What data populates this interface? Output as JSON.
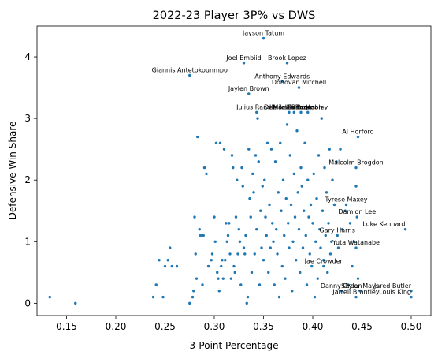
{
  "chart_data": {
    "type": "scatter",
    "title": "2022-23 Player 3P% vs DWS",
    "xlabel": "3-Point Percentage",
    "ylabel": "Defensive Win Share",
    "xlim": [
      0.12,
      0.52
    ],
    "ylim": [
      -0.2,
      4.5
    ],
    "xticks": [
      "0.15",
      "0.20",
      "0.25",
      "0.30",
      "0.35",
      "0.40",
      "0.45",
      "0.50"
    ],
    "yticks": [
      "0",
      "1",
      "2",
      "3",
      "4"
    ],
    "point_color": "#1f77b4",
    "grid": false,
    "labeled_points": [
      {
        "name": "Jayson Tatum",
        "x": 0.35,
        "y": 4.3
      },
      {
        "name": "Joel Embiid",
        "x": 0.33,
        "y": 3.9
      },
      {
        "name": "Brook Lopez",
        "x": 0.374,
        "y": 3.9
      },
      {
        "name": "Giannis Antetokounmpo",
        "x": 0.275,
        "y": 3.7
      },
      {
        "name": "Anthony Edwards",
        "x": 0.369,
        "y": 3.6
      },
      {
        "name": "Donovan Mitchell",
        "x": 0.386,
        "y": 3.5
      },
      {
        "name": "Jaylen Brown",
        "x": 0.335,
        "y": 3.4
      },
      {
        "name": "Julius Randle",
        "x": 0.343,
        "y": 3.1
      },
      {
        "name": "DeMar DeRozan",
        "x": 0.376,
        "y": 3.1
      },
      {
        "name": "Jalen Brunson",
        "x": 0.388,
        "y": 3.1
      },
      {
        "name": "Mikal Bridges",
        "x": 0.381,
        "y": 3.1
      },
      {
        "name": "Evan Mobley",
        "x": 0.395,
        "y": 3.1
      },
      {
        "name": "Al Horford",
        "x": 0.446,
        "y": 2.7
      },
      {
        "name": "Malcolm Brogdon",
        "x": 0.444,
        "y": 2.2
      },
      {
        "name": "Tyrese Maxey",
        "x": 0.434,
        "y": 1.6
      },
      {
        "name": "Damion Lee",
        "x": 0.445,
        "y": 1.4
      },
      {
        "name": "Luke Kennard",
        "x": 0.494,
        "y": 1.2
      },
      {
        "name": "Gary Harris",
        "x": 0.425,
        "y": 1.1
      },
      {
        "name": "Yuta Watanabe",
        "x": 0.444,
        "y": 0.9
      },
      {
        "name": "Jae Crowder",
        "x": 0.411,
        "y": 0.6
      },
      {
        "name": "Danny Green",
        "x": 0.429,
        "y": 0.2
      },
      {
        "name": "Skylar Mays",
        "x": 0.448,
        "y": 0.2
      },
      {
        "name": "Jared Butler",
        "x": 0.5,
        "y": 0.2
      },
      {
        "name": "Jarrell Brantley",
        "x": 0.444,
        "y": 0.1
      },
      {
        "name": "Louis King",
        "x": 0.5,
        "y": 0.1
      }
    ],
    "points": [
      [
        0.133,
        0.1
      ],
      [
        0.159,
        0.0
      ],
      [
        0.238,
        0.1
      ],
      [
        0.241,
        0.3
      ],
      [
        0.244,
        0.7
      ],
      [
        0.248,
        0.1
      ],
      [
        0.25,
        0.6
      ],
      [
        0.253,
        0.7
      ],
      [
        0.255,
        0.9
      ],
      [
        0.257,
        0.6
      ],
      [
        0.262,
        0.6
      ],
      [
        0.275,
        0.0
      ],
      [
        0.278,
        0.1
      ],
      [
        0.279,
        0.2
      ],
      [
        0.28,
        1.4
      ],
      [
        0.281,
        0.8
      ],
      [
        0.282,
        0.4
      ],
      [
        0.283,
        2.7
      ],
      [
        0.285,
        1.2
      ],
      [
        0.286,
        1.1
      ],
      [
        0.288,
        0.3
      ],
      [
        0.289,
        1.1
      ],
      [
        0.29,
        2.2
      ],
      [
        0.292,
        2.1
      ],
      [
        0.294,
        0.6
      ],
      [
        0.297,
        0.7
      ],
      [
        0.298,
        0.8
      ],
      [
        0.3,
        1.4
      ],
      [
        0.301,
        1.0
      ],
      [
        0.302,
        2.6
      ],
      [
        0.303,
        0.5
      ],
      [
        0.304,
        0.4
      ],
      [
        0.305,
        0.2
      ],
      [
        0.306,
        2.6
      ],
      [
        0.307,
        0.6
      ],
      [
        0.308,
        0.7
      ],
      [
        0.309,
        0.4
      ],
      [
        0.31,
        2.5
      ],
      [
        0.311,
        0.7
      ],
      [
        0.312,
        1.3
      ],
      [
        0.313,
        1.0
      ],
      [
        0.314,
        1.1
      ],
      [
        0.315,
        1.3
      ],
      [
        0.316,
        0.8
      ],
      [
        0.317,
        0.4
      ],
      [
        0.318,
        2.4
      ],
      [
        0.319,
        2.2
      ],
      [
        0.32,
        0.6
      ],
      [
        0.321,
        0.5
      ],
      [
        0.322,
        1.4
      ],
      [
        0.323,
        2.0
      ],
      [
        0.324,
        0.8
      ],
      [
        0.325,
        1.2
      ],
      [
        0.326,
        1.0
      ],
      [
        0.327,
        0.3
      ],
      [
        0.328,
        2.2
      ],
      [
        0.329,
        1.9
      ],
      [
        0.33,
        0.9
      ],
      [
        0.331,
        0.8
      ],
      [
        0.332,
        1.1
      ],
      [
        0.333,
        0.0
      ],
      [
        0.334,
        0.1
      ],
      [
        0.335,
        2.5
      ],
      [
        0.336,
        1.7
      ],
      [
        0.337,
        1.4
      ],
      [
        0.338,
        0.5
      ],
      [
        0.339,
        2.1
      ],
      [
        0.34,
        1.8
      ],
      [
        0.341,
        0.8
      ],
      [
        0.342,
        2.4
      ],
      [
        0.343,
        1.2
      ],
      [
        0.344,
        3.0
      ],
      [
        0.345,
        2.3
      ],
      [
        0.346,
        0.3
      ],
      [
        0.347,
        1.5
      ],
      [
        0.348,
        0.9
      ],
      [
        0.349,
        1.9
      ],
      [
        0.35,
        0.7
      ],
      [
        0.351,
        2.0
      ],
      [
        0.352,
        1.4
      ],
      [
        0.353,
        1.1
      ],
      [
        0.354,
        2.6
      ],
      [
        0.355,
        0.5
      ],
      [
        0.356,
        1.6
      ],
      [
        0.357,
        0.9
      ],
      [
        0.358,
        2.5
      ],
      [
        0.359,
        1.3
      ],
      [
        0.36,
        1.0
      ],
      [
        0.361,
        0.3
      ],
      [
        0.362,
        2.3
      ],
      [
        0.363,
        1.2
      ],
      [
        0.364,
        0.8
      ],
      [
        0.365,
        1.8
      ],
      [
        0.366,
        0.1
      ],
      [
        0.367,
        2.6
      ],
      [
        0.368,
        1.5
      ],
      [
        0.369,
        0.6
      ],
      [
        0.37,
        2.0
      ],
      [
        0.371,
        1.1
      ],
      [
        0.372,
        0.4
      ],
      [
        0.373,
        1.7
      ],
      [
        0.374,
        2.9
      ],
      [
        0.375,
        1.3
      ],
      [
        0.376,
        0.9
      ],
      [
        0.377,
        2.4
      ],
      [
        0.378,
        1.6
      ],
      [
        0.379,
        0.2
      ],
      [
        0.38,
        1.0
      ],
      [
        0.381,
        2.1
      ],
      [
        0.382,
        1.4
      ],
      [
        0.383,
        0.7
      ],
      [
        0.384,
        2.8
      ],
      [
        0.385,
        1.8
      ],
      [
        0.386,
        1.2
      ],
      [
        0.387,
        0.5
      ],
      [
        0.388,
        2.2
      ],
      [
        0.389,
        1.9
      ],
      [
        0.39,
        0.9
      ],
      [
        0.391,
        1.5
      ],
      [
        0.392,
        2.6
      ],
      [
        0.393,
        1.1
      ],
      [
        0.394,
        0.3
      ],
      [
        0.395,
        2.0
      ],
      [
        0.396,
        1.4
      ],
      [
        0.397,
        0.8
      ],
      [
        0.398,
        1.6
      ],
      [
        0.399,
        0.6
      ],
      [
        0.4,
        1.3
      ],
      [
        0.401,
        2.1
      ],
      [
        0.402,
        0.1
      ],
      [
        0.403,
        1.0
      ],
      [
        0.404,
        1.7
      ],
      [
        0.405,
        0.4
      ],
      [
        0.406,
        2.4
      ],
      [
        0.407,
        1.2
      ],
      [
        0.408,
        0.9
      ],
      [
        0.409,
        3.0
      ],
      [
        0.41,
        1.5
      ],
      [
        0.411,
        0.7
      ],
      [
        0.412,
        2.2
      ],
      [
        0.413,
        1.1
      ],
      [
        0.414,
        1.8
      ],
      [
        0.415,
        0.5
      ],
      [
        0.416,
        1.3
      ],
      [
        0.417,
        2.5
      ],
      [
        0.418,
        0.8
      ],
      [
        0.419,
        1.0
      ],
      [
        0.42,
        2.0
      ],
      [
        0.422,
        1.6
      ],
      [
        0.424,
        2.3
      ],
      [
        0.426,
        0.9
      ],
      [
        0.428,
        2.5
      ],
      [
        0.43,
        1.2
      ],
      [
        0.433,
        1.5
      ],
      [
        0.436,
        0.3
      ],
      [
        0.438,
        1.3
      ],
      [
        0.44,
        0.6
      ],
      [
        0.442,
        1.0
      ],
      [
        0.444,
        1.9
      ],
      [
        0.446,
        0.4
      ]
    ]
  }
}
